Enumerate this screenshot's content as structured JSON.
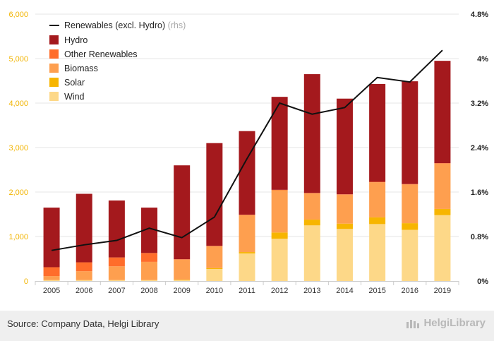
{
  "chart_data": {
    "type": "bar",
    "stacked": true,
    "categories": [
      "2005",
      "2006",
      "2007",
      "2008",
      "2009",
      "2010",
      "2011",
      "2012",
      "2013",
      "2014",
      "2015",
      "2016",
      "2019"
    ],
    "series": [
      {
        "name": "Wind",
        "color": "#fdd888",
        "values": [
          20,
          20,
          20,
          20,
          20,
          270,
          620,
          950,
          1250,
          1170,
          1280,
          1150,
          1480
        ]
      },
      {
        "name": "Solar",
        "color": "#f7b500",
        "values": [
          0,
          0,
          0,
          0,
          10,
          20,
          30,
          140,
          130,
          120,
          150,
          150,
          140
        ]
      },
      {
        "name": "Biomass",
        "color": "#fe9f4f",
        "values": [
          90,
          200,
          310,
          410,
          450,
          490,
          830,
          950,
          590,
          650,
          790,
          870,
          1020
        ]
      },
      {
        "name": "Other Renewables",
        "color": "#ff6d2b",
        "values": [
          200,
          200,
          200,
          200,
          10,
          10,
          10,
          10,
          10,
          10,
          10,
          10,
          10
        ]
      },
      {
        "name": "Hydro",
        "color": "#a4191d",
        "values": [
          1340,
          1540,
          1280,
          1020,
          2110,
          2310,
          1880,
          2090,
          2670,
          2150,
          2200,
          2310,
          2300
        ]
      }
    ],
    "line": {
      "name": "Renewables (excl. Hydro)",
      "suffix": "(rhs)",
      "color": "#111111",
      "values": [
        0.55,
        0.65,
        0.73,
        0.95,
        0.78,
        1.15,
        2.2,
        3.2,
        3.0,
        3.12,
        3.66,
        3.58,
        4.15
      ]
    },
    "ylim": [
      0,
      6000
    ],
    "y_ticks": [
      "0",
      "1,000",
      "2,000",
      "3,000",
      "4,000",
      "5,000",
      "6,000"
    ],
    "y2lim": [
      0,
      4.8
    ],
    "y2_ticks": [
      "0%",
      "0.8%",
      "1.6%",
      "2.4%",
      "3.2%",
      "4%",
      "4.8%"
    ],
    "legend_position": "top-left",
    "grid": true
  },
  "footer": {
    "source": "Source: Company Data, Helgi Library",
    "brand": "HelgiLibrary"
  },
  "colors": {
    "grid": "#e6e6e6",
    "left_tick": "#f2b400",
    "footer_bg": "#efefef"
  }
}
